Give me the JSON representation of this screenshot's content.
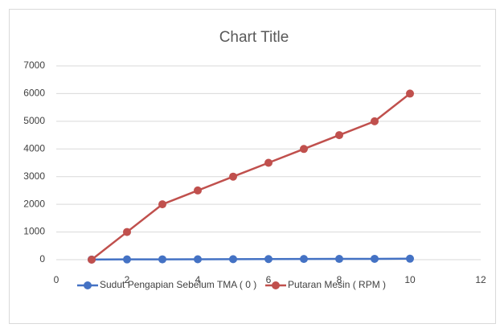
{
  "chart_data": {
    "type": "line",
    "title": "Chart Title",
    "x": [
      1,
      2,
      3,
      4,
      5,
      6,
      7,
      8,
      9,
      10
    ],
    "series": [
      {
        "name": "Sudut Pengapian Sebelum TMA ( 0 )",
        "color": "#4472c4",
        "values": [
          5,
          10,
          12,
          15,
          18,
          22,
          25,
          28,
          30,
          35
        ]
      },
      {
        "name": "Putaran Mesin ( RPM )",
        "color": "#c0504d",
        "values": [
          0,
          1000,
          2000,
          2500,
          3000,
          3500,
          4000,
          4500,
          5000,
          6000
        ]
      }
    ],
    "xlim": [
      0,
      12
    ],
    "xticks": [
      0,
      2,
      4,
      6,
      8,
      10,
      12
    ],
    "ylim": [
      0,
      7000
    ],
    "yticks": [
      0,
      1000,
      2000,
      3000,
      4000,
      5000,
      6000,
      7000
    ],
    "grid": true,
    "legend": "bottom"
  }
}
